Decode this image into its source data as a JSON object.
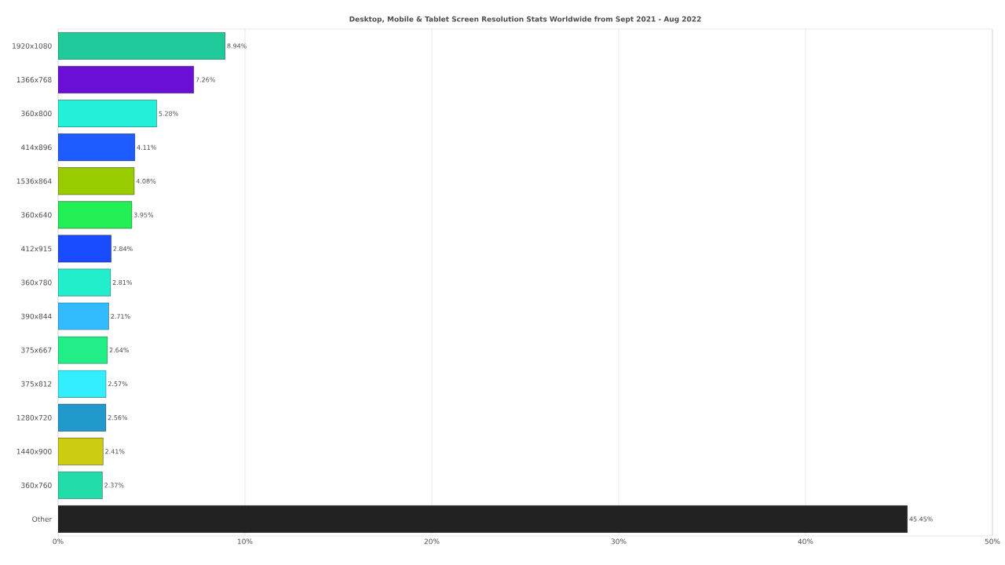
{
  "chart_data": {
    "type": "bar",
    "orientation": "horizontal",
    "title": "Desktop, Mobile & Tablet Screen Resolution Stats Worldwide from Sept 2021 - Aug 2022",
    "categories": [
      "1920x1080",
      "1366x768",
      "360x800",
      "414x896",
      "1536x864",
      "360x640",
      "412x915",
      "360x780",
      "390x844",
      "375x667",
      "375x812",
      "1280x720",
      "1440x900",
      "360x760",
      "Other"
    ],
    "values": [
      8.94,
      7.26,
      5.28,
      4.11,
      4.08,
      3.95,
      2.84,
      2.81,
      2.71,
      2.64,
      2.57,
      2.56,
      2.41,
      2.37,
      45.45
    ],
    "value_labels": [
      "8.94%",
      "7.26%",
      "5.28%",
      "4.11%",
      "4.08%",
      "3.95%",
      "2.84%",
      "2.81%",
      "2.71%",
      "2.64%",
      "2.57%",
      "2.56%",
      "2.41%",
      "2.37%",
      "45.45%"
    ],
    "colors": [
      "#1fc99a",
      "#6a10d6",
      "#22f0d8",
      "#1f5cff",
      "#99cc00",
      "#22ee55",
      "#1a4cff",
      "#22eecc",
      "#33bbff",
      "#22ee88",
      "#33eeff",
      "#2299cc",
      "#cccc11",
      "#22ddaa",
      "#222222"
    ],
    "xlim": [
      0,
      50
    ],
    "xticks": [
      {
        "value": 0,
        "label": "0%"
      },
      {
        "value": 10,
        "label": "10%"
      },
      {
        "value": 20,
        "label": "20%"
      },
      {
        "value": 30,
        "label": "30%"
      },
      {
        "value": 40,
        "label": "40%"
      },
      {
        "value": 50,
        "label": "50%"
      }
    ],
    "grid": "x"
  }
}
